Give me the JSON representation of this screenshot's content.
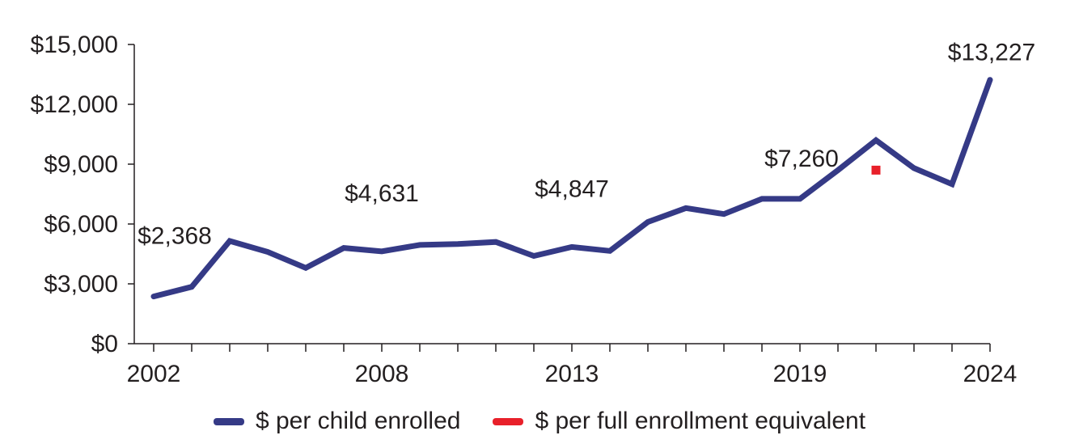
{
  "chart_data": {
    "type": "line",
    "x": [
      2002,
      2003,
      2004,
      2005,
      2006,
      2007,
      2008,
      2009,
      2010,
      2011,
      2012,
      2013,
      2014,
      2015,
      2016,
      2017,
      2018,
      2019,
      2020,
      2021,
      2022,
      2023,
      2024
    ],
    "series": [
      {
        "name": "$ per child enrolled",
        "color": "#353a86",
        "values": [
          2368,
          2850,
          5150,
          4600,
          3800,
          4800,
          4631,
          4950,
          5000,
          5100,
          4400,
          4847,
          4650,
          6100,
          6800,
          6500,
          7260,
          7260,
          8700,
          10200,
          8800,
          8000,
          13227
        ]
      },
      {
        "name": "$ per full enrollment equivalent",
        "color": "#e8202a",
        "points": [
          {
            "x": 2021,
            "y": 8700
          }
        ]
      }
    ],
    "data_labels": [
      {
        "x": 2002,
        "text": "$2,368"
      },
      {
        "x": 2008,
        "text": "$4,631"
      },
      {
        "x": 2013,
        "text": "$4,847"
      },
      {
        "x": 2019,
        "text": "$7,260"
      },
      {
        "x": 2024,
        "text": "$13,227"
      }
    ],
    "xticks": [
      2002,
      2008,
      2013,
      2019,
      2024
    ],
    "xtick_labels": [
      "2002",
      "2008",
      "2013",
      "2019",
      "2024"
    ],
    "yticks": [
      0,
      3000,
      6000,
      9000,
      12000,
      15000
    ],
    "ytick_labels": [
      "$0",
      "$3,000",
      "$6,000",
      "$9,000",
      "$12,000",
      "$15,000"
    ],
    "ylim": [
      0,
      15000
    ],
    "xlim": [
      2002,
      2024
    ],
    "grid": false,
    "legend_position": "bottom"
  }
}
